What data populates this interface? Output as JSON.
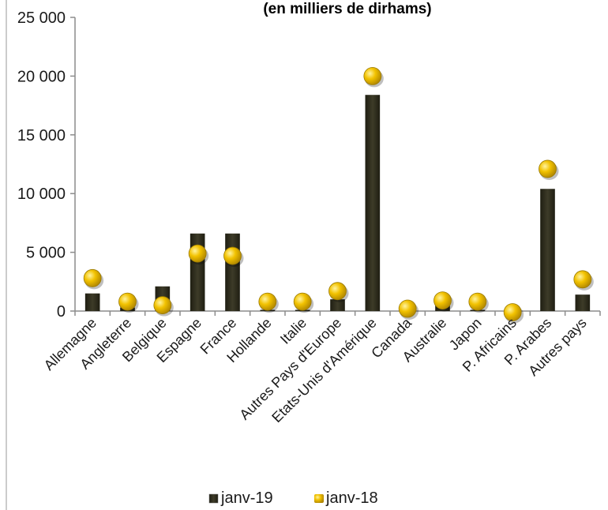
{
  "chart_data": {
    "type": "bar",
    "title": "(en milliers de dirhams)",
    "categories": [
      "Allemagne",
      "Angleterre",
      "Belgique",
      "Espagne",
      "France",
      "Hollande",
      "Italie",
      "Autres Pays d'Europe",
      "Etats-Unis d'Amérique",
      "Canada",
      "Australie",
      "Japon",
      "P. Africains",
      "P. Arabes",
      "Autres pays"
    ],
    "series": [
      {
        "name": "janv-19",
        "kind": "bar",
        "color": "#2f2e1f",
        "values": [
          1500,
          300,
          2100,
          6600,
          6600,
          100,
          100,
          1000,
          18400,
          100,
          600,
          100,
          100,
          10400,
          1400
        ]
      },
      {
        "name": "janv-18",
        "kind": "marker",
        "color": "#e6b800",
        "values": [
          2800,
          800,
          500,
          4900,
          4700,
          800,
          800,
          1700,
          20000,
          200,
          900,
          800,
          -100,
          12100,
          2700
        ]
      }
    ],
    "yticks": [
      "25 000",
      "20 000",
      "15 000",
      "10 000",
      "5 000",
      "0"
    ],
    "ylim": [
      0,
      25000
    ],
    "grid": false,
    "legend_position": "bottom"
  }
}
